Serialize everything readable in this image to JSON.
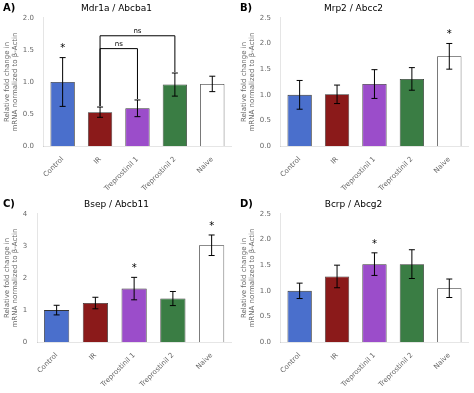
{
  "chart_data": [
    {
      "type": "bar",
      "panel_label": "A)",
      "title": "Mdr1a / Abcba1",
      "categories": [
        "Control",
        "IR",
        "Treprostinil 1",
        "Treprostinil 2",
        "Naive"
      ],
      "values": [
        1.0,
        0.53,
        0.59,
        0.96,
        0.97
      ],
      "errors": [
        0.38,
        0.08,
        0.13,
        0.18,
        0.12
      ],
      "colors": [
        "#4a6fcc",
        "#8b1a1a",
        "#9b4dca",
        "#3a7d44",
        "#ffffff"
      ],
      "y_label": "Relative fold change in\nmRNA normalized to β-Actin",
      "ylim": [
        0,
        2.0
      ],
      "yticks": [
        {
          "value": 0,
          "label": "0.0"
        },
        0.5,
        {
          "value": 1,
          "label": "1.0"
        },
        1.5,
        {
          "value": 2,
          "label": "2.0"
        }
      ],
      "significance": [
        "*",
        null,
        null,
        null,
        null
      ],
      "brackets": [
        {
          "from": "IR",
          "to": "Treprostinil 1",
          "y": 1.52,
          "label": "ns"
        },
        {
          "from": "IR",
          "to": "Treprostinil 2",
          "y": 1.72,
          "label": "ns"
        }
      ],
      "grid": false
    },
    {
      "type": "bar",
      "panel_label": "B)",
      "title": "Mrp2 / Abcc2",
      "categories": [
        "Control",
        "IR",
        "Treprostinil 1",
        "Treprostinil 2",
        "Naive"
      ],
      "values": [
        1.0,
        1.01,
        1.21,
        1.31,
        1.75
      ],
      "errors": [
        0.28,
        0.18,
        0.28,
        0.22,
        0.25
      ],
      "colors": [
        "#4a6fcc",
        "#8b1a1a",
        "#9b4dca",
        "#3a7d44",
        "#ffffff"
      ],
      "y_label": "Relative fold change in\nmRNA normalized to β-Actin",
      "ylim": [
        0,
        2.5
      ],
      "yticks": [
        {
          "value": 0,
          "label": "0.0"
        },
        0.5,
        {
          "value": 1,
          "label": "1.0"
        },
        1.5,
        {
          "value": 2,
          "label": "2.0"
        },
        2.5
      ],
      "significance": [
        null,
        null,
        null,
        null,
        "*"
      ],
      "brackets": [],
      "grid": false
    },
    {
      "type": "bar",
      "panel_label": "C)",
      "title": "Bsep / Abcb11",
      "categories": [
        "Control",
        "IR",
        "Treprostinil 1",
        "Treprostinil 2",
        "Naive"
      ],
      "values": [
        1.0,
        1.22,
        1.67,
        1.36,
        3.02
      ],
      "errors": [
        0.15,
        0.18,
        0.35,
        0.22,
        0.32
      ],
      "colors": [
        "#4a6fcc",
        "#8b1a1a",
        "#9b4dca",
        "#3a7d44",
        "#ffffff"
      ],
      "y_label": "Relative fold change in\nmRNA normalized to β-Actin",
      "ylim": [
        0,
        4.0
      ],
      "yticks": [
        0,
        1,
        2,
        3,
        4
      ],
      "significance": [
        null,
        null,
        "*",
        null,
        "*"
      ],
      "brackets": [],
      "grid": false
    },
    {
      "type": "bar",
      "panel_label": "D)",
      "title": "Bcrp / Abcg2",
      "categories": [
        "Control",
        "IR",
        "Treprostinil 1",
        "Treprostinil 2",
        "Naive"
      ],
      "values": [
        1.0,
        1.28,
        1.52,
        1.52,
        1.05
      ],
      "errors": [
        0.15,
        0.22,
        0.22,
        0.28,
        0.18
      ],
      "colors": [
        "#4a6fcc",
        "#8b1a1a",
        "#9b4dca",
        "#3a7d44",
        "#ffffff"
      ],
      "y_label": "Relative fold change in\nmRNA normalized to β-Actin",
      "ylim": [
        0,
        2.5
      ],
      "yticks": [
        {
          "value": 0,
          "label": "0.0"
        },
        0.5,
        {
          "value": 1,
          "label": "1.0"
        },
        1.5,
        {
          "value": 2,
          "label": "2.0"
        },
        2.5
      ],
      "significance": [
        null,
        null,
        "*",
        null,
        null
      ],
      "brackets": [],
      "grid": false
    }
  ]
}
